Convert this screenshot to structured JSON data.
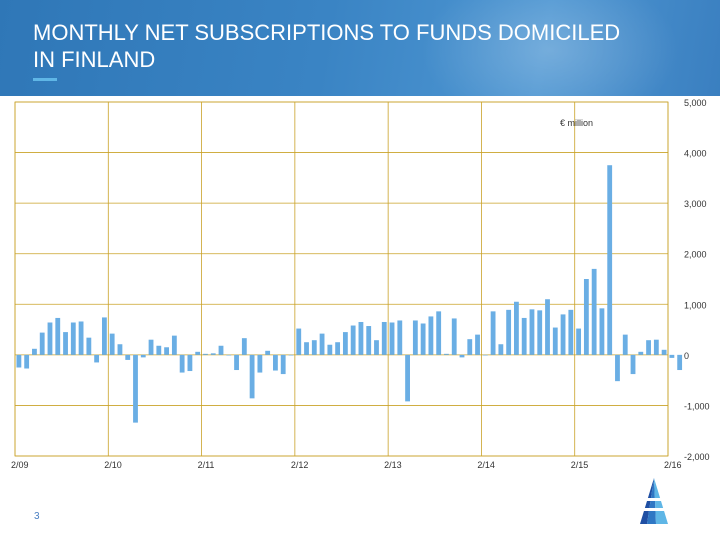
{
  "header": {
    "title": "MONTHLY NET SUBSCRIPTIONS TO FUNDS DOMICILED IN FINLAND"
  },
  "footer": {
    "page_number": "3"
  },
  "colors": {
    "header_bg": "#3a84c4",
    "bar": "#6aaee4",
    "grid": "#c9a227",
    "accent": "#5fb6e6"
  },
  "chart_data": {
    "type": "bar",
    "unit_label": "€ million",
    "x_tick_labels": [
      "2/09",
      "2/10",
      "2/11",
      "2/12",
      "2/13",
      "2/14",
      "2/15",
      "2/16"
    ],
    "y_tick_labels": [
      "5,000",
      "4,000",
      "3,000",
      "2,000",
      "1,000",
      "0",
      "-1,000",
      "-2,000"
    ],
    "ylim": [
      -2000,
      5000
    ],
    "grid": true,
    "y_axis_side": "right",
    "x_start": "2009-02",
    "x_end": "2016-02",
    "values": [
      -250,
      -270,
      120,
      440,
      640,
      730,
      450,
      640,
      660,
      340,
      -150,
      740,
      420,
      210,
      -100,
      -1340,
      -50,
      300,
      180,
      150,
      380,
      -350,
      -320,
      60,
      20,
      30,
      180,
      0,
      -300,
      330,
      -860,
      -350,
      80,
      -310,
      -380,
      0,
      520,
      250,
      290,
      420,
      200,
      250,
      450,
      580,
      650,
      570,
      290,
      650,
      640,
      680,
      -920,
      680,
      620,
      760,
      860,
      20,
      720,
      -50,
      310,
      400,
      -10,
      860,
      210,
      890,
      1050,
      730,
      900,
      880,
      1100,
      540,
      800,
      890,
      520,
      1500,
      1700,
      920,
      3750,
      -520,
      400,
      -380,
      60,
      290,
      300,
      100,
      -60,
      -300
    ]
  }
}
